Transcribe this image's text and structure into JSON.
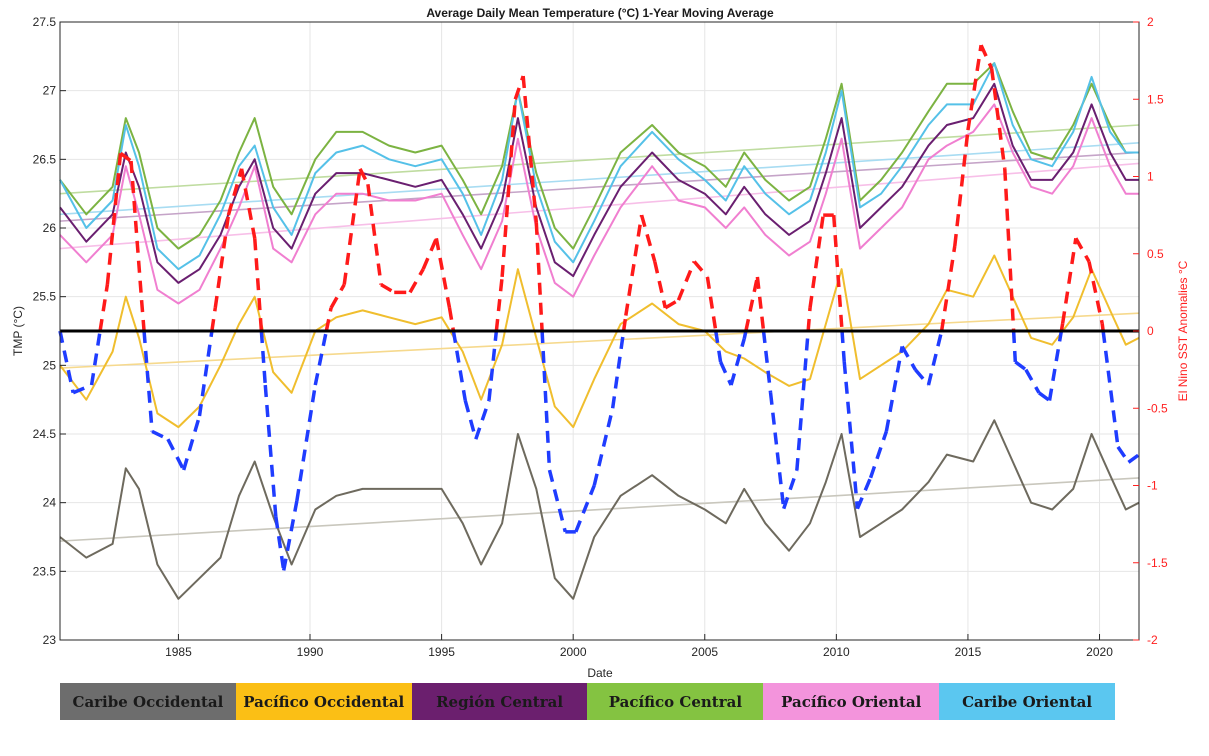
{
  "chart_data": {
    "type": "line",
    "title": "Average Daily Mean Temperature (°C) 1-Year Moving Average",
    "xlabel": "Date",
    "ylabel": "TMP (°C)",
    "y2label": "El Nino SST Anomalies °C",
    "xlim": [
      1980.5,
      2021.5
    ],
    "ylim": [
      23,
      27.5
    ],
    "y2lim": [
      -2,
      2
    ],
    "xticks": [
      "1985",
      "1990",
      "1995",
      "2000",
      "2005",
      "2010",
      "2015",
      "2020"
    ],
    "yticks": [
      "23",
      "23.5",
      "24",
      "24.5",
      "25",
      "25.5",
      "26",
      "26.5",
      "27",
      "27.5"
    ],
    "y2ticks": [
      "-2",
      "-1.5",
      "-1",
      "-0.5",
      "0",
      "0.5",
      "1",
      "1.5",
      "2"
    ],
    "grid": true,
    "zero_line_y2": 0,
    "series": [
      {
        "name": "Caribe Occidental",
        "color": "#6e6a5e",
        "x": [
          1980.5,
          1981.5,
          1982.5,
          1983.0,
          1983.5,
          1984.2,
          1985.0,
          1985.8,
          1986.6,
          1987.3,
          1987.9,
          1988.6,
          1989.3,
          1990.2,
          1991.0,
          1992.0,
          1993.0,
          1994.0,
          1995.0,
          1995.8,
          1996.5,
          1997.3,
          1997.9,
          1998.6,
          1999.3,
          2000.0,
          2000.8,
          2001.8,
          2003.0,
          2004.0,
          2005.0,
          2005.8,
          2006.5,
          2007.3,
          2008.2,
          2009.0,
          2009.6,
          2010.2,
          2010.9,
          2011.7,
          2012.5,
          2013.5,
          2014.2,
          2015.2,
          2016.0,
          2016.7,
          2017.4,
          2018.2,
          2019.0,
          2019.7,
          2020.4,
          2021.0,
          2021.5
        ],
        "y": [
          23.75,
          23.6,
          23.7,
          24.25,
          24.1,
          23.55,
          23.3,
          23.45,
          23.6,
          24.05,
          24.3,
          23.9,
          23.55,
          23.95,
          24.05,
          24.1,
          24.1,
          24.1,
          24.1,
          23.85,
          23.55,
          23.85,
          24.5,
          24.1,
          23.45,
          23.3,
          23.75,
          24.05,
          24.2,
          24.05,
          23.95,
          23.85,
          24.1,
          23.85,
          23.65,
          23.85,
          24.15,
          24.5,
          23.75,
          23.85,
          23.95,
          24.15,
          24.35,
          24.3,
          24.6,
          24.3,
          24.0,
          23.95,
          24.1,
          24.5,
          24.2,
          23.95,
          24.0
        ]
      },
      {
        "name": "Pacífico Occidental",
        "color": "#f0be2e",
        "x": [
          1980.5,
          1981.5,
          1982.5,
          1983.0,
          1983.5,
          1984.2,
          1985.0,
          1985.8,
          1986.6,
          1987.3,
          1987.9,
          1988.6,
          1989.3,
          1990.2,
          1991.0,
          1992.0,
          1993.0,
          1994.0,
          1995.0,
          1995.8,
          1996.5,
          1997.3,
          1997.9,
          1998.6,
          1999.3,
          2000.0,
          2000.8,
          2001.8,
          2003.0,
          2004.0,
          2005.0,
          2005.8,
          2006.5,
          2007.3,
          2008.2,
          2009.0,
          2009.6,
          2010.2,
          2010.9,
          2011.7,
          2012.5,
          2013.5,
          2014.2,
          2015.2,
          2016.0,
          2016.7,
          2017.4,
          2018.2,
          2019.0,
          2019.7,
          2020.4,
          2021.0,
          2021.5
        ],
        "y": [
          25.0,
          24.75,
          25.1,
          25.5,
          25.2,
          24.65,
          24.55,
          24.7,
          25.0,
          25.3,
          25.5,
          24.95,
          24.8,
          25.25,
          25.35,
          25.4,
          25.35,
          25.3,
          25.35,
          25.1,
          24.75,
          25.15,
          25.7,
          25.2,
          24.7,
          24.55,
          24.9,
          25.3,
          25.45,
          25.3,
          25.25,
          25.1,
          25.05,
          24.95,
          24.85,
          24.9,
          25.3,
          25.7,
          24.9,
          25.0,
          25.1,
          25.3,
          25.55,
          25.5,
          25.8,
          25.5,
          25.2,
          25.15,
          25.35,
          25.7,
          25.4,
          25.15,
          25.2
        ]
      },
      {
        "name": "Región Central",
        "color": "#6a1f70",
        "x": [
          1980.5,
          1981.5,
          1982.5,
          1983.0,
          1983.5,
          1984.2,
          1985.0,
          1985.8,
          1986.6,
          1987.3,
          1987.9,
          1988.6,
          1989.3,
          1990.2,
          1991.0,
          1992.0,
          1993.0,
          1994.0,
          1995.0,
          1995.8,
          1996.5,
          1997.3,
          1997.9,
          1998.6,
          1999.3,
          2000.0,
          2000.8,
          2001.8,
          2003.0,
          2004.0,
          2005.0,
          2005.8,
          2006.5,
          2007.3,
          2008.2,
          2009.0,
          2009.6,
          2010.2,
          2010.9,
          2011.7,
          2012.5,
          2013.5,
          2014.2,
          2015.2,
          2016.0,
          2016.7,
          2017.4,
          2018.2,
          2019.0,
          2019.7,
          2020.4,
          2021.0,
          2021.5
        ],
        "y": [
          26.15,
          25.9,
          26.1,
          26.55,
          26.3,
          25.75,
          25.6,
          25.7,
          25.95,
          26.3,
          26.5,
          26.0,
          25.85,
          26.25,
          26.4,
          26.4,
          26.35,
          26.3,
          26.35,
          26.1,
          25.85,
          26.2,
          26.8,
          26.15,
          25.75,
          25.65,
          25.95,
          26.3,
          26.55,
          26.35,
          26.25,
          26.1,
          26.3,
          26.1,
          25.95,
          26.05,
          26.4,
          26.8,
          26.0,
          26.15,
          26.3,
          26.6,
          26.75,
          26.8,
          27.05,
          26.6,
          26.35,
          26.35,
          26.55,
          26.9,
          26.55,
          26.35,
          26.35
        ]
      },
      {
        "name": "Pacífico Central",
        "color": "#7cb342",
        "x": [
          1980.5,
          1981.5,
          1982.5,
          1983.0,
          1983.5,
          1984.2,
          1985.0,
          1985.8,
          1986.6,
          1987.3,
          1987.9,
          1988.6,
          1989.3,
          1990.2,
          1991.0,
          1992.0,
          1993.0,
          1994.0,
          1995.0,
          1995.8,
          1996.5,
          1997.3,
          1997.9,
          1998.6,
          1999.3,
          2000.0,
          2000.8,
          2001.8,
          2003.0,
          2004.0,
          2005.0,
          2005.8,
          2006.5,
          2007.3,
          2008.2,
          2009.0,
          2009.6,
          2010.2,
          2010.9,
          2011.7,
          2012.5,
          2013.5,
          2014.2,
          2015.2,
          2016.0,
          2016.7,
          2017.4,
          2018.2,
          2019.0,
          2019.7,
          2020.4,
          2021.0,
          2021.5
        ],
        "y": [
          26.35,
          26.1,
          26.3,
          26.8,
          26.55,
          26.0,
          25.85,
          25.95,
          26.2,
          26.55,
          26.8,
          26.3,
          26.1,
          26.5,
          26.7,
          26.7,
          26.6,
          26.55,
          26.6,
          26.35,
          26.1,
          26.45,
          27.0,
          26.4,
          26.0,
          25.85,
          26.15,
          26.55,
          26.75,
          26.55,
          26.45,
          26.3,
          26.55,
          26.35,
          26.2,
          26.3,
          26.65,
          27.05,
          26.2,
          26.35,
          26.55,
          26.85,
          27.05,
          27.05,
          27.2,
          26.85,
          26.55,
          26.5,
          26.75,
          27.05,
          26.75,
          26.55,
          26.55
        ]
      },
      {
        "name": "Pacífico Oriental",
        "color": "#f07fd0",
        "x": [
          1980.5,
          1981.5,
          1982.5,
          1983.0,
          1983.5,
          1984.2,
          1985.0,
          1985.8,
          1986.6,
          1987.3,
          1987.9,
          1988.6,
          1989.3,
          1990.2,
          1991.0,
          1992.0,
          1993.0,
          1994.0,
          1995.0,
          1995.8,
          1996.5,
          1997.3,
          1997.9,
          1998.6,
          1999.3,
          2000.0,
          2000.8,
          2001.8,
          2003.0,
          2004.0,
          2005.0,
          2005.8,
          2006.5,
          2007.3,
          2008.2,
          2009.0,
          2009.6,
          2010.2,
          2010.9,
          2011.7,
          2012.5,
          2013.5,
          2014.2,
          2015.2,
          2016.0,
          2016.7,
          2017.4,
          2018.2,
          2019.0,
          2019.7,
          2020.4,
          2021.0,
          2021.5
        ],
        "y": [
          25.95,
          25.75,
          25.95,
          26.45,
          26.1,
          25.55,
          25.45,
          25.55,
          25.85,
          26.15,
          26.45,
          25.85,
          25.75,
          26.1,
          26.25,
          26.25,
          26.2,
          26.2,
          26.25,
          25.95,
          25.7,
          26.05,
          26.65,
          26.0,
          25.6,
          25.5,
          25.8,
          26.15,
          26.45,
          26.2,
          26.15,
          26.0,
          26.15,
          25.95,
          25.8,
          25.9,
          26.25,
          26.65,
          25.85,
          26.0,
          26.15,
          26.5,
          26.6,
          26.7,
          26.9,
          26.55,
          26.3,
          26.25,
          26.45,
          26.8,
          26.45,
          26.25,
          26.25
        ]
      },
      {
        "name": "Caribe Oriental",
        "color": "#55c1e8",
        "x": [
          1980.5,
          1981.5,
          1982.5,
          1983.0,
          1983.5,
          1984.2,
          1985.0,
          1985.8,
          1986.6,
          1987.3,
          1987.9,
          1988.6,
          1989.3,
          1990.2,
          1991.0,
          1992.0,
          1993.0,
          1994.0,
          1995.0,
          1995.8,
          1996.5,
          1997.3,
          1997.9,
          1998.6,
          1999.3,
          2000.0,
          2000.8,
          2001.8,
          2003.0,
          2004.0,
          2005.0,
          2005.8,
          2006.5,
          2007.3,
          2008.2,
          2009.0,
          2009.6,
          2010.2,
          2010.9,
          2011.7,
          2012.5,
          2013.5,
          2014.2,
          2015.2,
          2016.0,
          2016.7,
          2017.4,
          2018.2,
          2019.0,
          2019.7,
          2020.4,
          2021.0,
          2021.5
        ],
        "y": [
          26.35,
          26.0,
          26.2,
          26.75,
          26.45,
          25.85,
          25.7,
          25.8,
          26.1,
          26.45,
          26.6,
          26.15,
          25.95,
          26.4,
          26.55,
          26.6,
          26.5,
          26.45,
          26.5,
          26.25,
          25.95,
          26.35,
          27.0,
          26.3,
          25.9,
          25.75,
          26.05,
          26.45,
          26.7,
          26.5,
          26.35,
          26.2,
          26.45,
          26.25,
          26.1,
          26.2,
          26.55,
          27.0,
          26.15,
          26.25,
          26.45,
          26.75,
          26.9,
          26.9,
          27.2,
          26.75,
          26.5,
          26.45,
          26.7,
          27.1,
          26.7,
          26.55,
          26.55
        ]
      },
      {
        "name": "El Nino SST Anomalies",
        "color": "#ff1a1a",
        "neg_color": "#1f3cff",
        "axis": "right",
        "dashed": true,
        "x": [
          1980.5,
          1981.0,
          1981.7,
          1982.3,
          1982.8,
          1983.2,
          1983.6,
          1984.0,
          1984.6,
          1985.2,
          1985.8,
          1986.4,
          1986.9,
          1987.4,
          1987.9,
          1988.3,
          1988.7,
          1989.0,
          1989.5,
          1990.2,
          1990.8,
          1991.3,
          1991.9,
          1992.2,
          1992.7,
          1993.2,
          1993.8,
          1994.3,
          1994.8,
          1995.3,
          1995.9,
          1996.3,
          1996.8,
          1997.3,
          1997.8,
          1998.1,
          1998.6,
          1999.1,
          1999.7,
          2000.1,
          2000.8,
          2001.5,
          2002.0,
          2002.6,
          2003.1,
          2003.5,
          2004.0,
          2004.6,
          2005.1,
          2005.6,
          2006.0,
          2006.5,
          2007.0,
          2007.5,
          2008.0,
          2008.5,
          2009.0,
          2009.5,
          2009.9,
          2010.3,
          2010.8,
          2011.3,
          2011.9,
          2012.5,
          2013.0,
          2013.5,
          2014.0,
          2014.5,
          2015.0,
          2015.5,
          2015.9,
          2016.4,
          2016.8,
          2017.2,
          2017.7,
          2018.1,
          2018.6,
          2019.1,
          2019.6,
          2020.1,
          2020.7,
          2021.1,
          2021.5
        ],
        "y": [
          0.0,
          -0.4,
          -0.35,
          0.3,
          1.15,
          1.1,
          0.2,
          -0.65,
          -0.7,
          -0.9,
          -0.55,
          0.15,
          0.75,
          1.05,
          0.6,
          -0.35,
          -1.2,
          -1.55,
          -1.1,
          -0.35,
          0.15,
          0.3,
          1.05,
          0.95,
          0.3,
          0.25,
          0.25,
          0.4,
          0.6,
          0.15,
          -0.45,
          -0.7,
          -0.45,
          0.35,
          1.5,
          1.65,
          0.7,
          -0.9,
          -1.3,
          -1.3,
          -1.0,
          -0.5,
          0.1,
          0.75,
          0.45,
          0.15,
          0.2,
          0.45,
          0.35,
          -0.2,
          -0.35,
          -0.05,
          0.35,
          -0.4,
          -1.15,
          -0.9,
          0.15,
          0.75,
          0.75,
          -0.2,
          -1.15,
          -0.95,
          -0.65,
          -0.1,
          -0.25,
          -0.35,
          0.0,
          0.55,
          1.3,
          1.85,
          1.7,
          1.05,
          -0.2,
          -0.25,
          -0.4,
          -0.45,
          0.05,
          0.6,
          0.45,
          0.05,
          -0.75,
          -0.85,
          -0.8
        ]
      }
    ],
    "trendlines": [
      {
        "name": "Caribe Occidental trend",
        "color": "#c9c7bd",
        "y": [
          23.72,
          24.18
        ]
      },
      {
        "name": "Pacífico Occidental trend",
        "color": "#f6d98d",
        "y": [
          24.98,
          25.38
        ]
      },
      {
        "name": "Región Central trend",
        "color": "#c5a4c8",
        "y": [
          26.05,
          26.55
        ]
      },
      {
        "name": "Pacífico Central trend",
        "color": "#bfdca0",
        "y": [
          26.25,
          26.75
        ]
      },
      {
        "name": "Pacífico Oriental trend",
        "color": "#f7bfe8",
        "y": [
          25.85,
          26.47
        ]
      },
      {
        "name": "Caribe Oriental trend",
        "color": "#a8dcf2",
        "y": [
          26.1,
          26.62
        ]
      }
    ]
  },
  "legend": [
    {
      "label": "Caribe Occidental",
      "color": "#6d6d6d"
    },
    {
      "label": "Pacífico Occidental",
      "color": "#fbbf15"
    },
    {
      "label": "Región Central",
      "color": "#6b1f6e"
    },
    {
      "label": "Pacífico Central",
      "color": "#84c341"
    },
    {
      "label": "Pacífico Oriental",
      "color": "#f394dc"
    },
    {
      "label": "Caribe Oriental",
      "color": "#5bc7f0"
    }
  ]
}
